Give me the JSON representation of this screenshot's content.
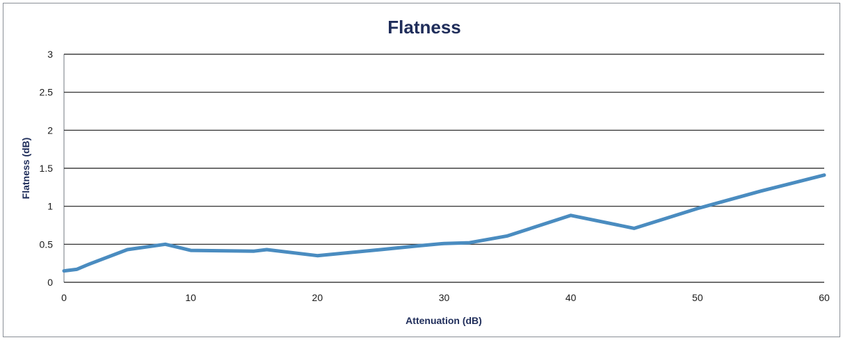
{
  "chart_data": {
    "type": "line",
    "title": "Flatness",
    "xlabel": "Attenuation (dB)",
    "ylabel": "Flatness (dB)",
    "xlim": [
      0,
      60
    ],
    "ylim": [
      0,
      3
    ],
    "x_ticks": [
      0,
      10,
      20,
      30,
      40,
      50,
      60
    ],
    "y_ticks": [
      0,
      0.5,
      1,
      1.5,
      2,
      2.5,
      3
    ],
    "grid": true,
    "legend": "none",
    "series": [
      {
        "color": "#4a8cc0",
        "x": [
          0,
          1,
          2,
          5,
          8,
          10,
          15,
          16,
          20,
          25,
          28,
          30,
          32,
          35,
          40,
          45,
          50,
          55,
          60
        ],
        "y": [
          0.15,
          0.17,
          0.24,
          0.43,
          0.5,
          0.42,
          0.41,
          0.43,
          0.35,
          0.43,
          0.48,
          0.51,
          0.52,
          0.61,
          0.88,
          0.71,
          0.97,
          1.2,
          1.41
        ]
      }
    ],
    "colors": {
      "grid": "#1a1a1a",
      "axis": "#8a8f96",
      "title": "#1f2d5a"
    }
  }
}
